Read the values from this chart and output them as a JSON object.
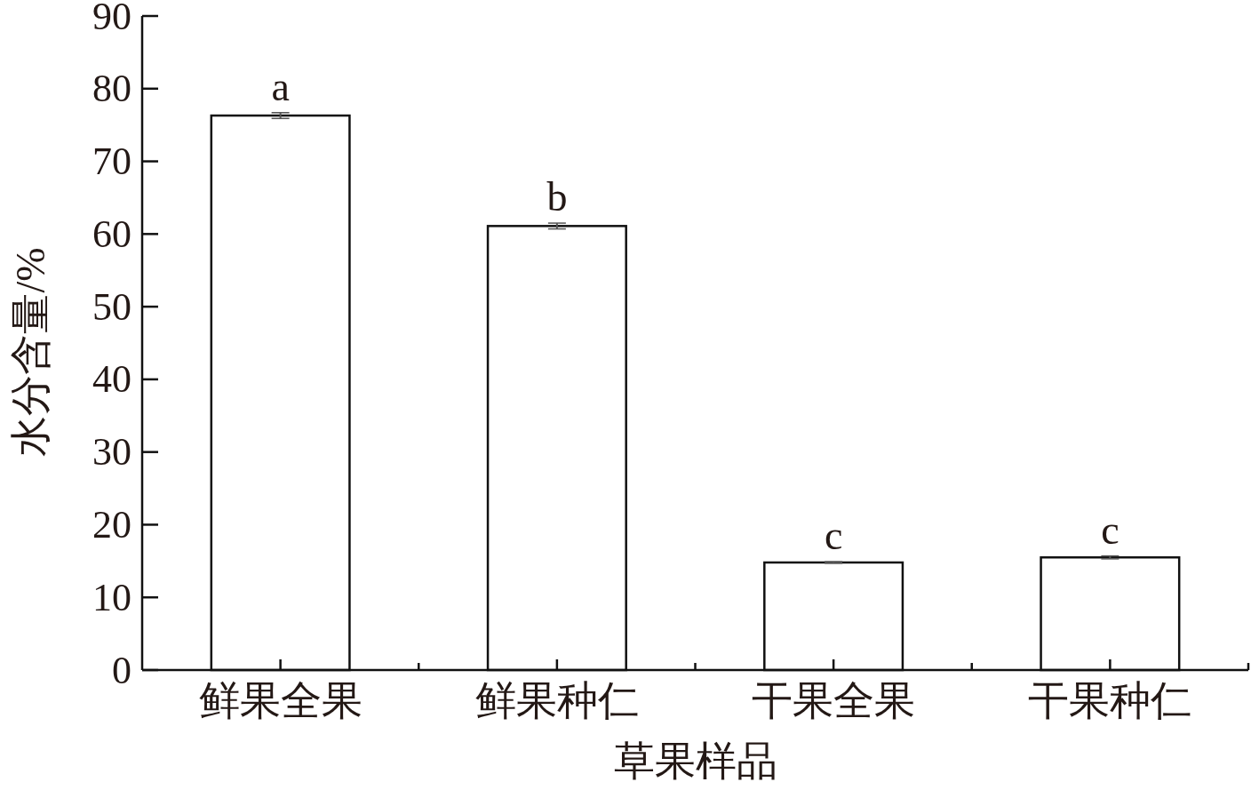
{
  "chart_data": {
    "type": "bar",
    "xlabel": "草果样品",
    "ylabel": "水分含量/%",
    "categories": [
      "鲜果全果",
      "鲜果种仁",
      "干果全果",
      "干果种仁"
    ],
    "values": [
      76.3,
      61.1,
      14.8,
      15.5
    ],
    "errors": [
      0.4,
      0.4,
      0.1,
      0.2
    ],
    "color": "#ffffff",
    "ylim": [
      0,
      90
    ],
    "yticks": [
      0,
      10,
      20,
      30,
      40,
      50,
      60,
      70,
      80,
      90
    ],
    "grid": false,
    "annotations": [
      {
        "text": "a",
        "x": "鲜果全果",
        "y": 76.7
      },
      {
        "text": "b",
        "x": "鲜果种仁",
        "y": 61.5
      },
      {
        "text": "c",
        "x": "干果全果",
        "y": 14.9
      },
      {
        "text": "c",
        "x": "干果种仁",
        "y": 15.7
      }
    ]
  }
}
